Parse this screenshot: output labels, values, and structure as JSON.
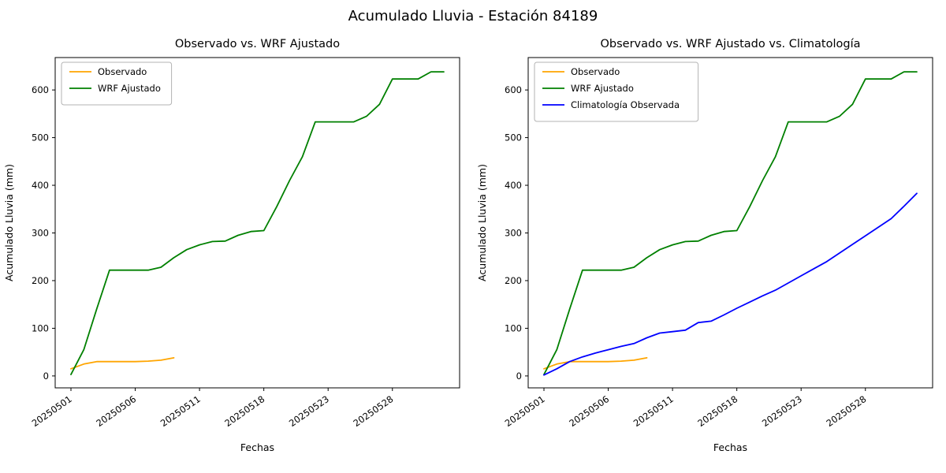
{
  "figure": {
    "suptitle": "Acumulado Lluvia - Estación 84189",
    "background": "#ffffff"
  },
  "chart_data": [
    {
      "type": "line",
      "title": "Observado vs. WRF Ajustado",
      "xlabel": "Fechas",
      "ylabel": "Acumulado Lluvia (mm)",
      "y_ticks": [
        0,
        100,
        200,
        300,
        400,
        500,
        600
      ],
      "ylim": [
        -25,
        668
      ],
      "n_points": 30,
      "x_tick_positions": [
        0,
        5,
        10,
        15,
        20,
        25
      ],
      "x_tick_labels": [
        "20250501",
        "20250506",
        "20250511",
        "20250518",
        "20250523",
        "20250528"
      ],
      "legend_position": "upper-left",
      "grid": false,
      "series": [
        {
          "name": "Observado",
          "color": "#ffa500",
          "values": [
            15,
            25,
            30,
            30,
            30,
            30,
            31,
            33,
            38
          ]
        },
        {
          "name": "WRF Ajustado",
          "color": "#008000",
          "values": [
            3,
            55,
            140,
            222,
            222,
            222,
            222,
            228,
            248,
            265,
            275,
            282,
            283,
            295,
            303,
            305,
            355,
            410,
            460,
            533,
            533,
            533,
            533,
            545,
            570,
            623,
            623,
            623,
            638,
            638
          ]
        }
      ]
    },
    {
      "type": "line",
      "title": "Observado vs. WRF Ajustado vs. Climatología",
      "xlabel": "Fechas",
      "ylabel": "Acumulado Lluvia (mm)",
      "y_ticks": [
        0,
        100,
        200,
        300,
        400,
        500,
        600
      ],
      "ylim": [
        -25,
        668
      ],
      "n_points": 30,
      "x_tick_positions": [
        0,
        5,
        10,
        15,
        20,
        25
      ],
      "x_tick_labels": [
        "20250501",
        "20250506",
        "20250511",
        "20250518",
        "20250523",
        "20250528"
      ],
      "legend_position": "upper-left",
      "grid": false,
      "series": [
        {
          "name": "Observado",
          "color": "#ffa500",
          "values": [
            15,
            25,
            30,
            30,
            30,
            30,
            31,
            33,
            38
          ]
        },
        {
          "name": "WRF Ajustado",
          "color": "#008000",
          "values": [
            3,
            55,
            140,
            222,
            222,
            222,
            222,
            228,
            248,
            265,
            275,
            282,
            283,
            295,
            303,
            305,
            355,
            410,
            460,
            533,
            533,
            533,
            533,
            545,
            570,
            623,
            623,
            623,
            638,
            638
          ]
        },
        {
          "name": "Climatología Observada",
          "color": "#0000ff",
          "values": [
            2,
            15,
            30,
            40,
            48,
            55,
            62,
            68,
            80,
            90,
            93,
            96,
            112,
            115,
            128,
            142,
            155,
            168,
            180,
            195,
            210,
            225,
            240,
            258,
            276,
            294,
            312,
            330,
            356,
            383
          ]
        }
      ]
    }
  ]
}
